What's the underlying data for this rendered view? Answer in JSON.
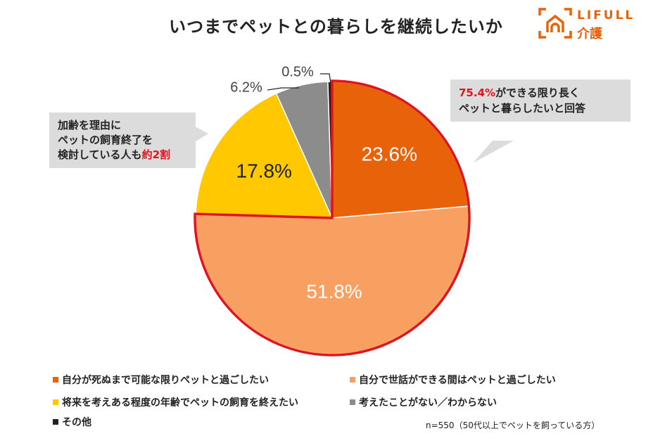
{
  "title": "いつまでペットとの暮らしを継続したいか",
  "logo": {
    "brand": "LIFULL",
    "sub": "介護",
    "color": "#E8620A"
  },
  "chart_data": {
    "type": "pie",
    "title": "いつまでペットとの暮らしを継続したいか",
    "start": "12 o'clock, clockwise",
    "slices": [
      {
        "name": "自分が死ぬまで可能な限りペットと過ごしたい",
        "value": 23.6,
        "label": "23.6%",
        "color": "#E8620A"
      },
      {
        "name": "自分で世話ができる間はペットと過ごしたい",
        "value": 51.8,
        "label": "51.8%",
        "color": "#F7A062"
      },
      {
        "name": "将来を考えある程度の年齢でペットの飼育を終えたい",
        "value": 17.8,
        "label": "17.8%",
        "color": "#FFC800"
      },
      {
        "name": "考えたことがない／わからない",
        "value": 6.2,
        "label": "6.2%",
        "color": "#8C8C8C"
      },
      {
        "name": "その他",
        "value": 0.5,
        "label": "0.5%",
        "color": "#222222"
      }
    ],
    "highlight_color": "#E0141E",
    "legend": "bottom"
  },
  "callouts": {
    "right": {
      "highlight": "75.4%",
      "line1_rest": "ができる限り長く",
      "line2": "ペットと暮らしたいと回答"
    },
    "left": {
      "line1": "加齢を理由に",
      "line2": "ペットの飼育終了を",
      "line3_prefix": "検討している人も",
      "line3_highlight": "約2割"
    }
  },
  "note": "n=550（50代以上でペットを飼っている方）"
}
